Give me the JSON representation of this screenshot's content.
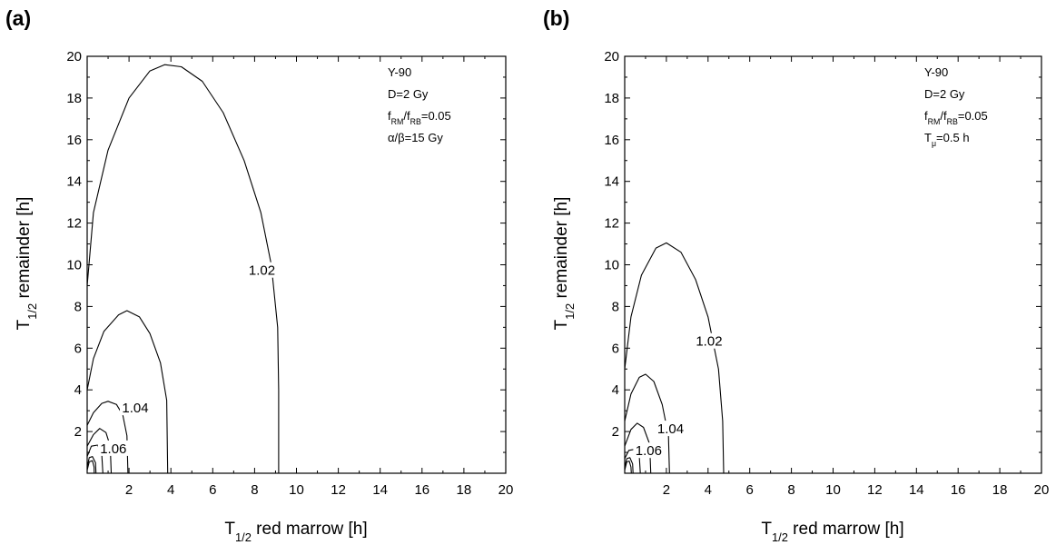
{
  "chart_data": [
    {
      "panel_label": "(a)",
      "type": "contour",
      "xlabel": {
        "main": "T",
        "sub": "1/2",
        "rest": " red marrow [h]"
      },
      "ylabel": {
        "main": "T",
        "sub": "1/2",
        "rest": " remainder [h]"
      },
      "xlim": [
        0,
        20
      ],
      "ylim": [
        0,
        20
      ],
      "xticks": [
        2,
        4,
        6,
        8,
        10,
        12,
        14,
        16,
        18,
        20
      ],
      "yticks": [
        2,
        4,
        6,
        8,
        10,
        12,
        14,
        16,
        18,
        20
      ],
      "annotations": [
        {
          "parts": [
            {
              "t": "Y-90"
            }
          ]
        },
        {
          "parts": [
            {
              "t": "D=2 Gy"
            }
          ]
        },
        {
          "parts": [
            {
              "t": "f"
            },
            {
              "t": "RM",
              "sub": true
            },
            {
              "t": "/f"
            },
            {
              "t": "RB",
              "sub": true
            },
            {
              "t": "=0.05"
            }
          ]
        },
        {
          "parts": [
            {
              "t": "α/β=15 Gy"
            }
          ]
        }
      ],
      "contours": [
        {
          "level": "1.02",
          "points": [
            [
              0,
              9
            ],
            [
              0.3,
              12.5
            ],
            [
              1,
              15.5
            ],
            [
              2,
              18
            ],
            [
              3,
              19.3
            ],
            [
              3.7,
              19.6
            ],
            [
              4.5,
              19.5
            ],
            [
              5.5,
              18.8
            ],
            [
              6.5,
              17.3
            ],
            [
              7.5,
              15
            ],
            [
              8.3,
              12.5
            ],
            [
              8.8,
              10
            ],
            [
              9.1,
              7
            ],
            [
              9.15,
              4
            ],
            [
              9.15,
              0
            ]
          ],
          "label_at": [
            8.35,
            9.6
          ]
        },
        {
          "level": "",
          "points": [
            [
              0,
              4
            ],
            [
              0.3,
              5.5
            ],
            [
              0.8,
              6.8
            ],
            [
              1.5,
              7.6
            ],
            [
              1.9,
              7.8
            ],
            [
              2.5,
              7.5
            ],
            [
              3,
              6.7
            ],
            [
              3.5,
              5.3
            ],
            [
              3.8,
              3.5
            ],
            [
              3.85,
              0
            ]
          ]
        },
        {
          "level": "1.04",
          "points": [
            [
              0,
              2.3
            ],
            [
              0.3,
              2.9
            ],
            [
              0.7,
              3.35
            ],
            [
              1,
              3.45
            ],
            [
              1.4,
              3.3
            ],
            [
              1.7,
              2.8
            ],
            [
              1.9,
              1.8
            ],
            [
              1.95,
              0
            ]
          ],
          "label_at": [
            2.3,
            3.0
          ]
        },
        {
          "level": "",
          "points": [
            [
              0,
              1.3
            ],
            [
              0.3,
              1.85
            ],
            [
              0.6,
              2.15
            ],
            [
              0.9,
              1.95
            ],
            [
              1.1,
              1.3
            ],
            [
              1.15,
              0
            ]
          ]
        },
        {
          "level": "1.06",
          "points": [
            [
              0,
              0.8
            ],
            [
              0.2,
              1.3
            ],
            [
              0.5,
              1.35
            ],
            [
              0.7,
              0.9
            ],
            [
              0.75,
              0
            ]
          ],
          "label_at": [
            1.25,
            1.05
          ]
        },
        {
          "level": "",
          "points": [
            [
              0,
              0.3
            ],
            [
              0.1,
              0.75
            ],
            [
              0.25,
              0.8
            ],
            [
              0.4,
              0.5
            ],
            [
              0.42,
              0
            ]
          ]
        },
        {
          "level": "",
          "points": [
            [
              0,
              0.15
            ],
            [
              0.1,
              0.55
            ],
            [
              0.25,
              0.6
            ],
            [
              0.33,
              0.3
            ],
            [
              0.34,
              0
            ]
          ]
        }
      ]
    },
    {
      "panel_label": "(b)",
      "type": "contour",
      "xlabel": {
        "main": "T",
        "sub": "1/2",
        "rest": " red marrow [h]"
      },
      "ylabel": {
        "main": "T",
        "sub": "1/2",
        "rest": " remainder [h]"
      },
      "xlim": [
        0,
        20
      ],
      "ylim": [
        0,
        20
      ],
      "xticks": [
        2,
        4,
        6,
        8,
        10,
        12,
        14,
        16,
        18,
        20
      ],
      "yticks": [
        2,
        4,
        6,
        8,
        10,
        12,
        14,
        16,
        18,
        20
      ],
      "annotations": [
        {
          "parts": [
            {
              "t": "Y-90"
            }
          ]
        },
        {
          "parts": [
            {
              "t": "D=2 Gy"
            }
          ]
        },
        {
          "parts": [
            {
              "t": "f"
            },
            {
              "t": "RM",
              "sub": true
            },
            {
              "t": "/f"
            },
            {
              "t": "RB",
              "sub": true
            },
            {
              "t": "=0.05"
            }
          ]
        },
        {
          "parts": [
            {
              "t": "T"
            },
            {
              "t": "μ",
              "sub": true
            },
            {
              "t": "=0.5 h"
            }
          ]
        }
      ],
      "contours": [
        {
          "level": "1.02",
          "points": [
            [
              0,
              5
            ],
            [
              0.3,
              7.5
            ],
            [
              0.8,
              9.5
            ],
            [
              1.5,
              10.8
            ],
            [
              2,
              11.05
            ],
            [
              2.7,
              10.6
            ],
            [
              3.4,
              9.3
            ],
            [
              4,
              7.5
            ],
            [
              4.5,
              5
            ],
            [
              4.7,
              2.5
            ],
            [
              4.75,
              0
            ]
          ],
          "label_at": [
            4.05,
            6.2
          ]
        },
        {
          "level": "",
          "points": [
            [
              0,
              2.5
            ],
            [
              0.3,
              3.8
            ],
            [
              0.7,
              4.6
            ],
            [
              1,
              4.75
            ],
            [
              1.4,
              4.4
            ],
            [
              1.8,
              3.3
            ],
            [
              2.1,
              1.8
            ],
            [
              2.15,
              0
            ]
          ]
        },
        {
          "level": "1.04",
          "points": [
            [
              0,
              1.3
            ],
            [
              0.3,
              2.1
            ],
            [
              0.6,
              2.4
            ],
            [
              0.9,
              2.2
            ],
            [
              1.2,
              1.4
            ],
            [
              1.25,
              0
            ]
          ],
          "label_at": [
            2.2,
            2.0
          ]
        },
        {
          "level": "1.06",
          "points": [
            [
              0,
              0.7
            ],
            [
              0.2,
              1.1
            ],
            [
              0.5,
              1.15
            ],
            [
              0.7,
              0.8
            ],
            [
              0.75,
              0
            ]
          ],
          "label_at": [
            1.15,
            0.95
          ]
        },
        {
          "level": "",
          "points": [
            [
              0,
              0.3
            ],
            [
              0.1,
              0.7
            ],
            [
              0.25,
              0.75
            ],
            [
              0.38,
              0.45
            ],
            [
              0.4,
              0
            ]
          ]
        },
        {
          "level": "",
          "points": [
            [
              0,
              0.15
            ],
            [
              0.1,
              0.55
            ],
            [
              0.22,
              0.58
            ],
            [
              0.3,
              0.3
            ],
            [
              0.32,
              0
            ]
          ]
        }
      ]
    }
  ]
}
